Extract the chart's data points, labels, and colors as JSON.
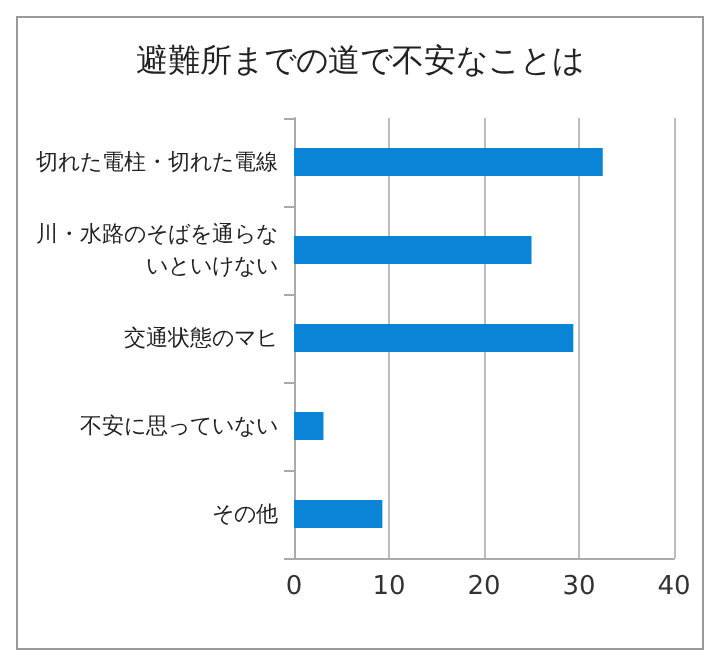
{
  "chart_data": {
    "type": "bar",
    "orientation": "horizontal",
    "title": "避難所までの道で不安なことは",
    "categories": [
      "切れた電柱・切れた電線",
      "川・水路のそばを通らないといけない",
      "交通状態のマヒ",
      "不安に思っていない",
      "その他"
    ],
    "values": [
      32.5,
      25,
      29.4,
      3.1,
      9.3
    ],
    "color": "#0a84d6",
    "xlim": [
      0,
      40
    ],
    "xticks": [
      0,
      10,
      20,
      30,
      40
    ],
    "grid": "x"
  }
}
